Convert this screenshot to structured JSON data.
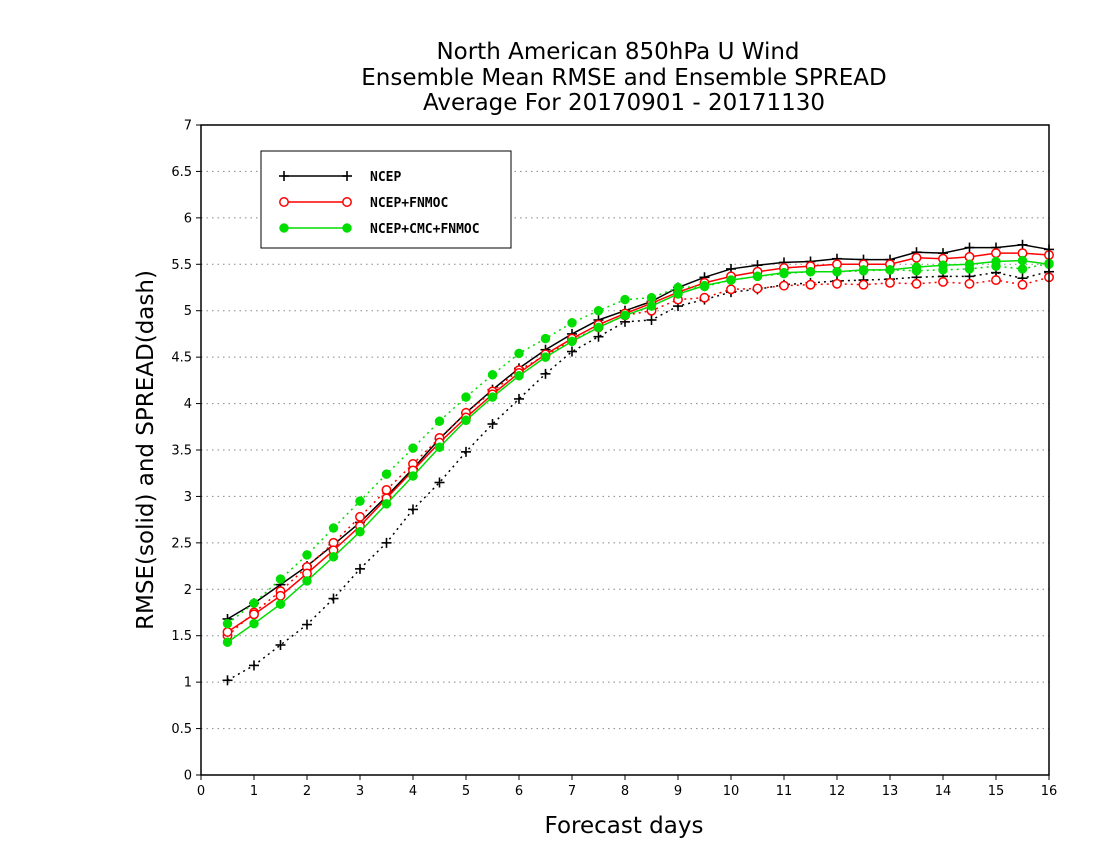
{
  "chart_data": {
    "type": "line",
    "title_lines": [
      "North American 850hPa U Wind",
      "Ensemble Mean RMSE and Ensemble SPREAD",
      "Average For 20170901 - 20171130"
    ],
    "xlabel": "Forecast days",
    "ylabel": "RMSE(solid) and SPREAD(dash)",
    "xlim": [
      0,
      16
    ],
    "ylim": [
      0,
      7
    ],
    "x_ticks": [
      "0",
      "1",
      "2",
      "3",
      "4",
      "5",
      "6",
      "7",
      "8",
      "9",
      "10",
      "11",
      "12",
      "13",
      "14",
      "15",
      "16"
    ],
    "y_ticks": [
      "0",
      "0.5",
      "1",
      "1.5",
      "2",
      "2.5",
      "3",
      "3.5",
      "4",
      "4.5",
      "5",
      "5.5",
      "6",
      "6.5",
      "7"
    ],
    "grid": "dotted horizontal",
    "legend_position": "top-left",
    "x": [
      0.5,
      1,
      1.5,
      2,
      2.5,
      3,
      3.5,
      4,
      4.5,
      5,
      5.5,
      6,
      6.5,
      7,
      7.5,
      8,
      8.5,
      9,
      9.5,
      10,
      10.5,
      11,
      11.5,
      12,
      12.5,
      13,
      13.5,
      14,
      14.5,
      15,
      15.5,
      16
    ],
    "series": [
      {
        "name": "NCEP",
        "color": "#000000",
        "marker": "plus",
        "rmse": [
          1.68,
          1.85,
          2.05,
          2.25,
          2.48,
          2.72,
          3.0,
          3.3,
          3.62,
          3.9,
          4.15,
          4.38,
          4.58,
          4.75,
          4.9,
          5.0,
          5.1,
          5.25,
          5.36,
          5.45,
          5.49,
          5.52,
          5.53,
          5.56,
          5.55,
          5.55,
          5.63,
          5.62,
          5.68,
          5.68,
          5.71,
          5.66
        ],
        "spread": [
          1.02,
          1.18,
          1.4,
          1.62,
          1.9,
          2.22,
          2.5,
          2.86,
          3.15,
          3.48,
          3.78,
          4.05,
          4.32,
          4.56,
          4.72,
          4.88,
          4.9,
          5.05,
          5.12,
          5.2,
          5.23,
          5.28,
          5.3,
          5.32,
          5.33,
          5.34,
          5.36,
          5.37,
          5.37,
          5.41,
          5.35,
          5.42
        ]
      },
      {
        "name": "NCEP+FNMOC",
        "color": "#ff0000",
        "marker": "open-circle",
        "rmse": [
          1.54,
          1.73,
          1.93,
          2.17,
          2.42,
          2.68,
          2.98,
          3.28,
          3.58,
          3.85,
          4.1,
          4.33,
          4.53,
          4.7,
          4.85,
          4.97,
          5.08,
          5.2,
          5.3,
          5.37,
          5.42,
          5.46,
          5.48,
          5.5,
          5.5,
          5.5,
          5.57,
          5.56,
          5.58,
          5.62,
          5.62,
          5.6
        ],
        "spread": [
          1.5,
          1.75,
          1.98,
          2.24,
          2.5,
          2.78,
          3.07,
          3.35,
          3.63,
          3.9,
          4.13,
          4.36,
          4.52,
          4.68,
          4.82,
          4.95,
          5.0,
          5.12,
          5.14,
          5.23,
          5.24,
          5.27,
          5.28,
          5.29,
          5.28,
          5.3,
          5.29,
          5.31,
          5.29,
          5.33,
          5.28,
          5.36
        ]
      },
      {
        "name": "NCEP+CMC+FNMOC",
        "color": "#00dd00",
        "marker": "filled-circle",
        "rmse": [
          1.43,
          1.63,
          1.84,
          2.09,
          2.35,
          2.62,
          2.92,
          3.22,
          3.53,
          3.82,
          4.07,
          4.3,
          4.5,
          4.67,
          4.82,
          4.95,
          5.05,
          5.18,
          5.27,
          5.33,
          5.37,
          5.41,
          5.42,
          5.42,
          5.44,
          5.44,
          5.47,
          5.49,
          5.5,
          5.53,
          5.54,
          5.5
        ],
        "spread": [
          1.63,
          1.85,
          2.11,
          2.37,
          2.66,
          2.95,
          3.24,
          3.52,
          3.81,
          4.07,
          4.31,
          4.54,
          4.7,
          4.87,
          5.0,
          5.12,
          5.14,
          5.25,
          5.26,
          5.33,
          5.37,
          5.4,
          5.42,
          5.42,
          5.43,
          5.44,
          5.43,
          5.44,
          5.45,
          5.48,
          5.45,
          5.51
        ]
      }
    ]
  }
}
